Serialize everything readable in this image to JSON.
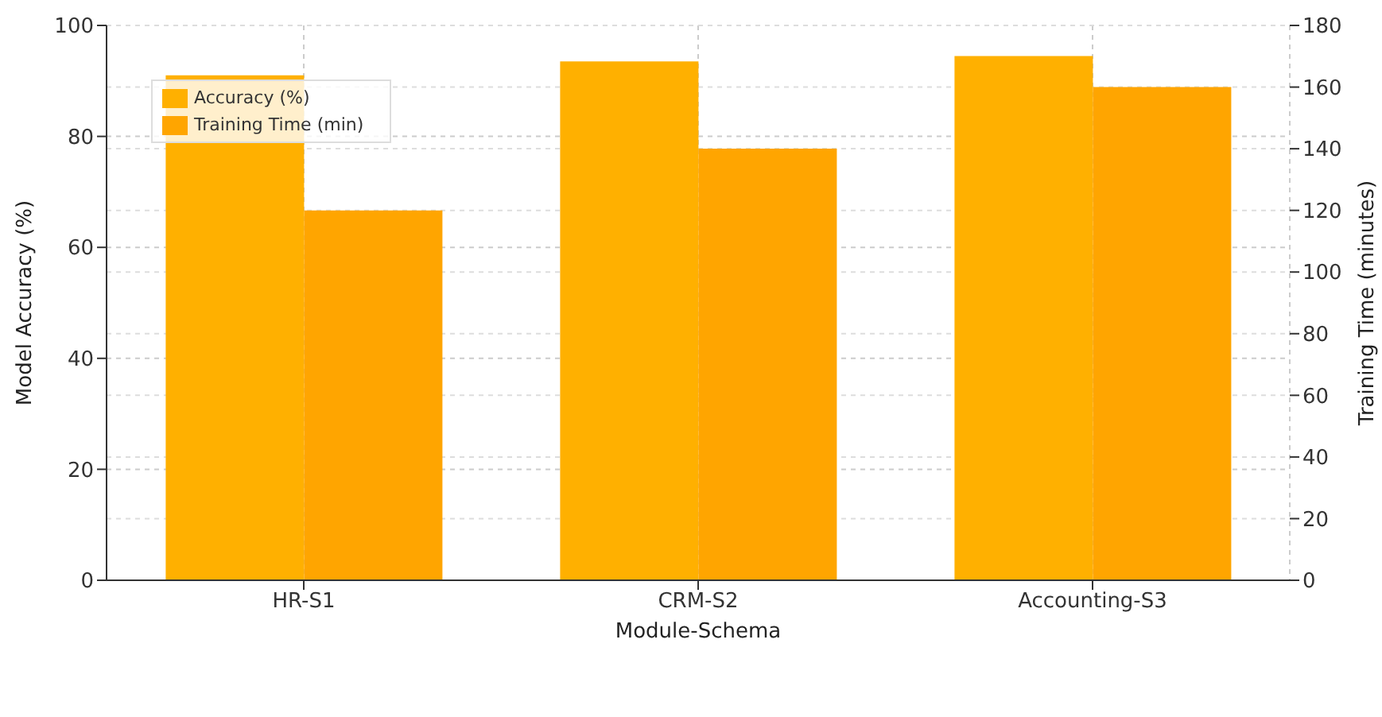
{
  "chart_data": {
    "type": "bar",
    "xlabel": "Module-Schema",
    "ylabel": "Model Accuracy (%)",
    "y2label": "Training Time (minutes)",
    "categories": [
      "HR-S1",
      "CRM-S2",
      "Accounting-S3"
    ],
    "series": [
      {
        "name": "Accuracy (%)",
        "color": "#ffb000",
        "values": [
          91,
          93.5,
          94.5
        ]
      },
      {
        "name": "Training Time (min)",
        "color": "#ffa500",
        "values": [
          120,
          140,
          160
        ],
        "axis": "y2"
      }
    ],
    "ylim": [
      0,
      100
    ],
    "yticks": [
      0,
      20,
      40,
      60,
      80,
      100
    ],
    "y2lim": [
      0,
      180
    ],
    "y2ticks": [
      0,
      20,
      40,
      60,
      80,
      100,
      120,
      140,
      160,
      180
    ],
    "grid": true,
    "legend": "top left"
  }
}
